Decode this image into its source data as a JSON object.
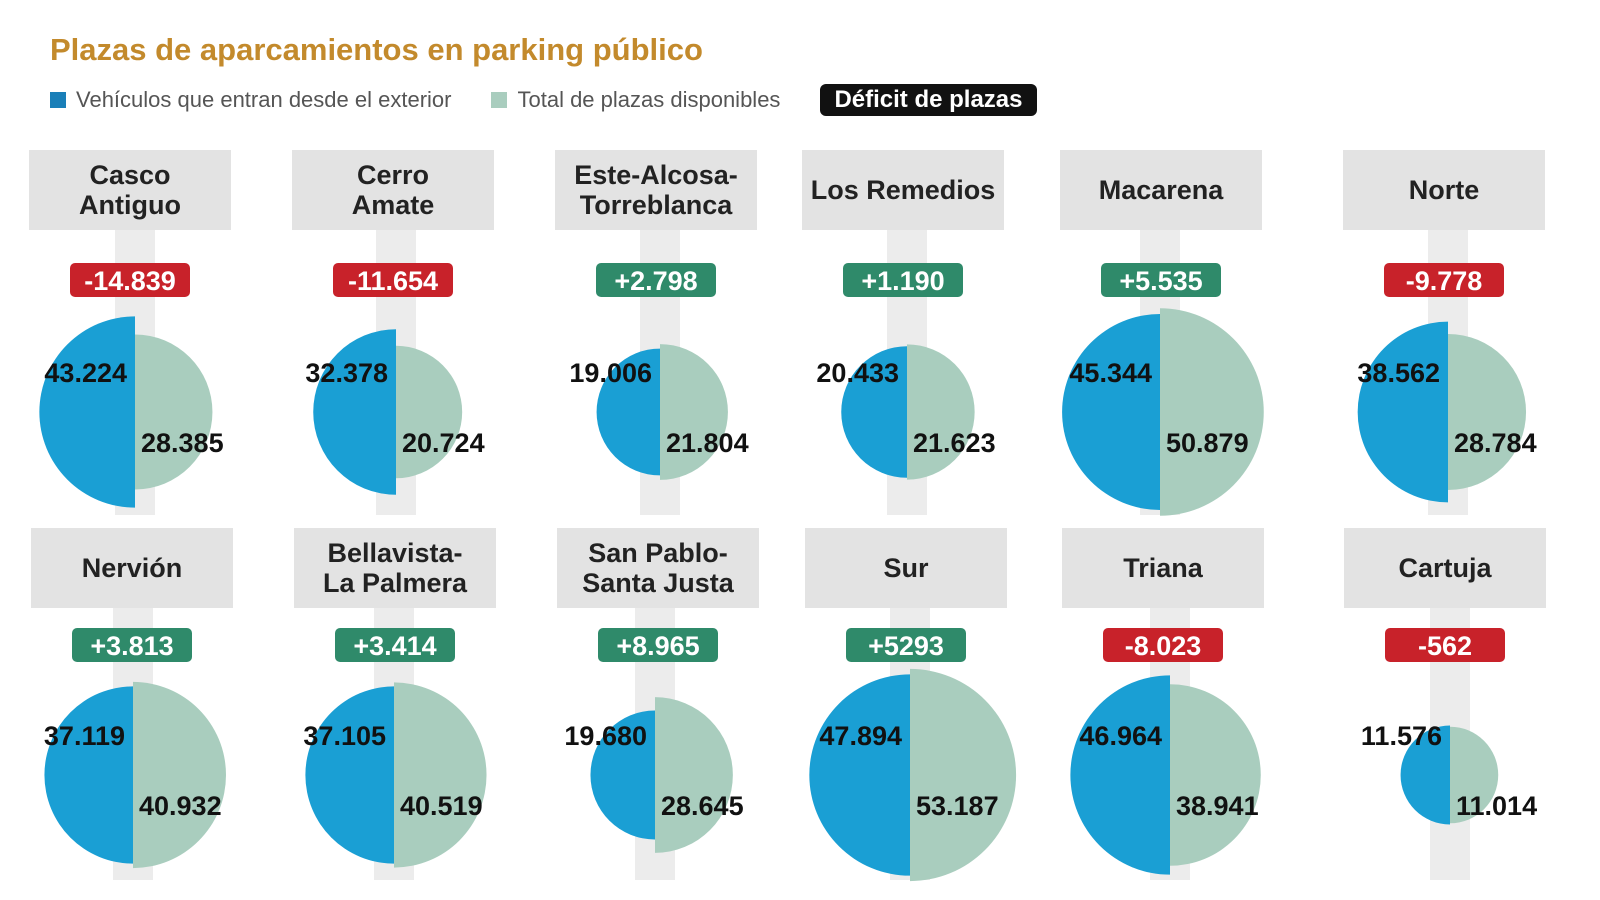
{
  "chart_data": {
    "type": "pie",
    "title": "Plazas de aparcamientos en parking público",
    "legend": {
      "vehicles": "Vehículos que entran desde el exterior",
      "total": "Total de plazas disponibles",
      "deficit": "Déficit de plazas"
    },
    "colors": {
      "vehicles": "#1a9fd4",
      "total": "#a9cdbe",
      "deficit_negative": "#c8222a",
      "deficit_positive": "#2f8a6a",
      "title": "#c38a2c"
    },
    "districts": [
      {
        "name": "Casco\nAntiguo",
        "vehicles": 43224,
        "vehicles_label": "43.224",
        "total": 28385,
        "total_label": "28.385",
        "deficit_label": "-14.839"
      },
      {
        "name": "Cerro\nAmate",
        "vehicles": 32378,
        "vehicles_label": "32.378",
        "total": 20724,
        "total_label": "20.724",
        "deficit_label": "-11.654"
      },
      {
        "name": "Este-Alcosa-\nTorreblanca",
        "vehicles": 19006,
        "vehicles_label": "19.006",
        "total": 21804,
        "total_label": "21.804",
        "deficit_label": "+2.798"
      },
      {
        "name": "Los Remedios",
        "vehicles": 20433,
        "vehicles_label": "20.433",
        "total": 21623,
        "total_label": "21.623",
        "deficit_label": "+1.190"
      },
      {
        "name": "Macarena",
        "vehicles": 45344,
        "vehicles_label": "45.344",
        "total": 50879,
        "total_label": "50.879",
        "deficit_label": "+5.535"
      },
      {
        "name": "Norte",
        "vehicles": 38562,
        "vehicles_label": "38.562",
        "total": 28784,
        "total_label": "28.784",
        "deficit_label": "-9.778"
      },
      {
        "name": "Nervión",
        "vehicles": 37119,
        "vehicles_label": "37.119",
        "total": 40932,
        "total_label": "40.932",
        "deficit_label": "+3.813"
      },
      {
        "name": "Bellavista-\nLa Palmera",
        "vehicles": 37105,
        "vehicles_label": "37.105",
        "total": 40519,
        "total_label": "40.519",
        "deficit_label": "+3.414"
      },
      {
        "name": "San Pablo-\nSanta Justa",
        "vehicles": 19680,
        "vehicles_label": "19.680",
        "total": 28645,
        "total_label": "28.645",
        "deficit_label": "+8.965"
      },
      {
        "name": "Sur",
        "vehicles": 47894,
        "vehicles_label": "47.894",
        "total": 53187,
        "total_label": "53.187",
        "deficit_label": "+5293"
      },
      {
        "name": "Triana",
        "vehicles": 46964,
        "vehicles_label": "46.964",
        "total": 38941,
        "total_label": "38.941",
        "deficit_label": "-8.023"
      },
      {
        "name": "Cartuja",
        "vehicles": 11576,
        "vehicles_label": "11.576",
        "total": 11014,
        "total_label": "11.014",
        "deficit_label": "-562"
      }
    ]
  }
}
